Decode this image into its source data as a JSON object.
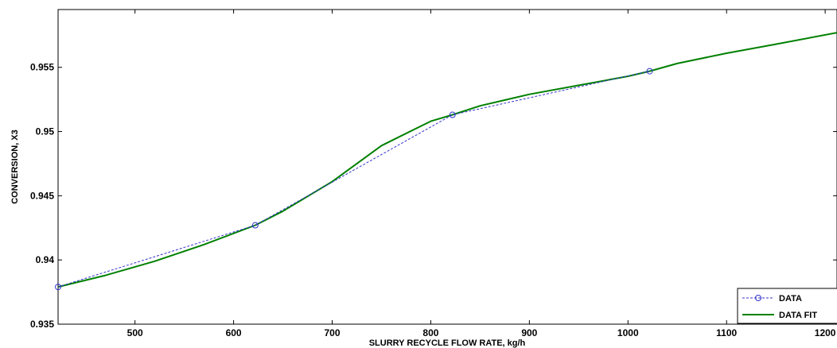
{
  "chart_data": {
    "type": "line",
    "xlabel": "SLURRY RECYCLE FLOW RATE, kg/h",
    "ylabel": "CONVERSION, X3",
    "xlim": [
      422,
      1212
    ],
    "ylim": [
      0.935,
      0.9595
    ],
    "xticks": [
      500,
      600,
      700,
      800,
      900,
      1000,
      1100,
      1200
    ],
    "yticks": [
      0.935,
      0.94,
      0.945,
      0.95,
      0.955
    ],
    "ytick_labels": [
      "0.935",
      "0.94",
      "0.945",
      "0.95",
      "0.955"
    ],
    "grid": false,
    "legend": "bottom-right",
    "series": [
      {
        "name": "DATA",
        "style": "dashed-circle-markers",
        "color": "#3333cc",
        "x": [
          422,
          622,
          822,
          1022
        ],
        "y": [
          0.9379,
          0.9427,
          0.9513,
          0.9547
        ]
      },
      {
        "name": "DATA FIT",
        "style": "solid",
        "color": "#008000",
        "x": [
          422,
          470,
          520,
          570,
          622,
          650,
          700,
          750,
          800,
          822,
          850,
          900,
          950,
          1000,
          1022,
          1050,
          1100,
          1150,
          1212
        ],
        "y": [
          0.9379,
          0.9388,
          0.9399,
          0.9412,
          0.9427,
          0.9438,
          0.9461,
          0.9489,
          0.9508,
          0.9513,
          0.952,
          0.9529,
          0.9536,
          0.9543,
          0.9547,
          0.9553,
          0.9561,
          0.9568,
          0.9577
        ]
      }
    ]
  }
}
